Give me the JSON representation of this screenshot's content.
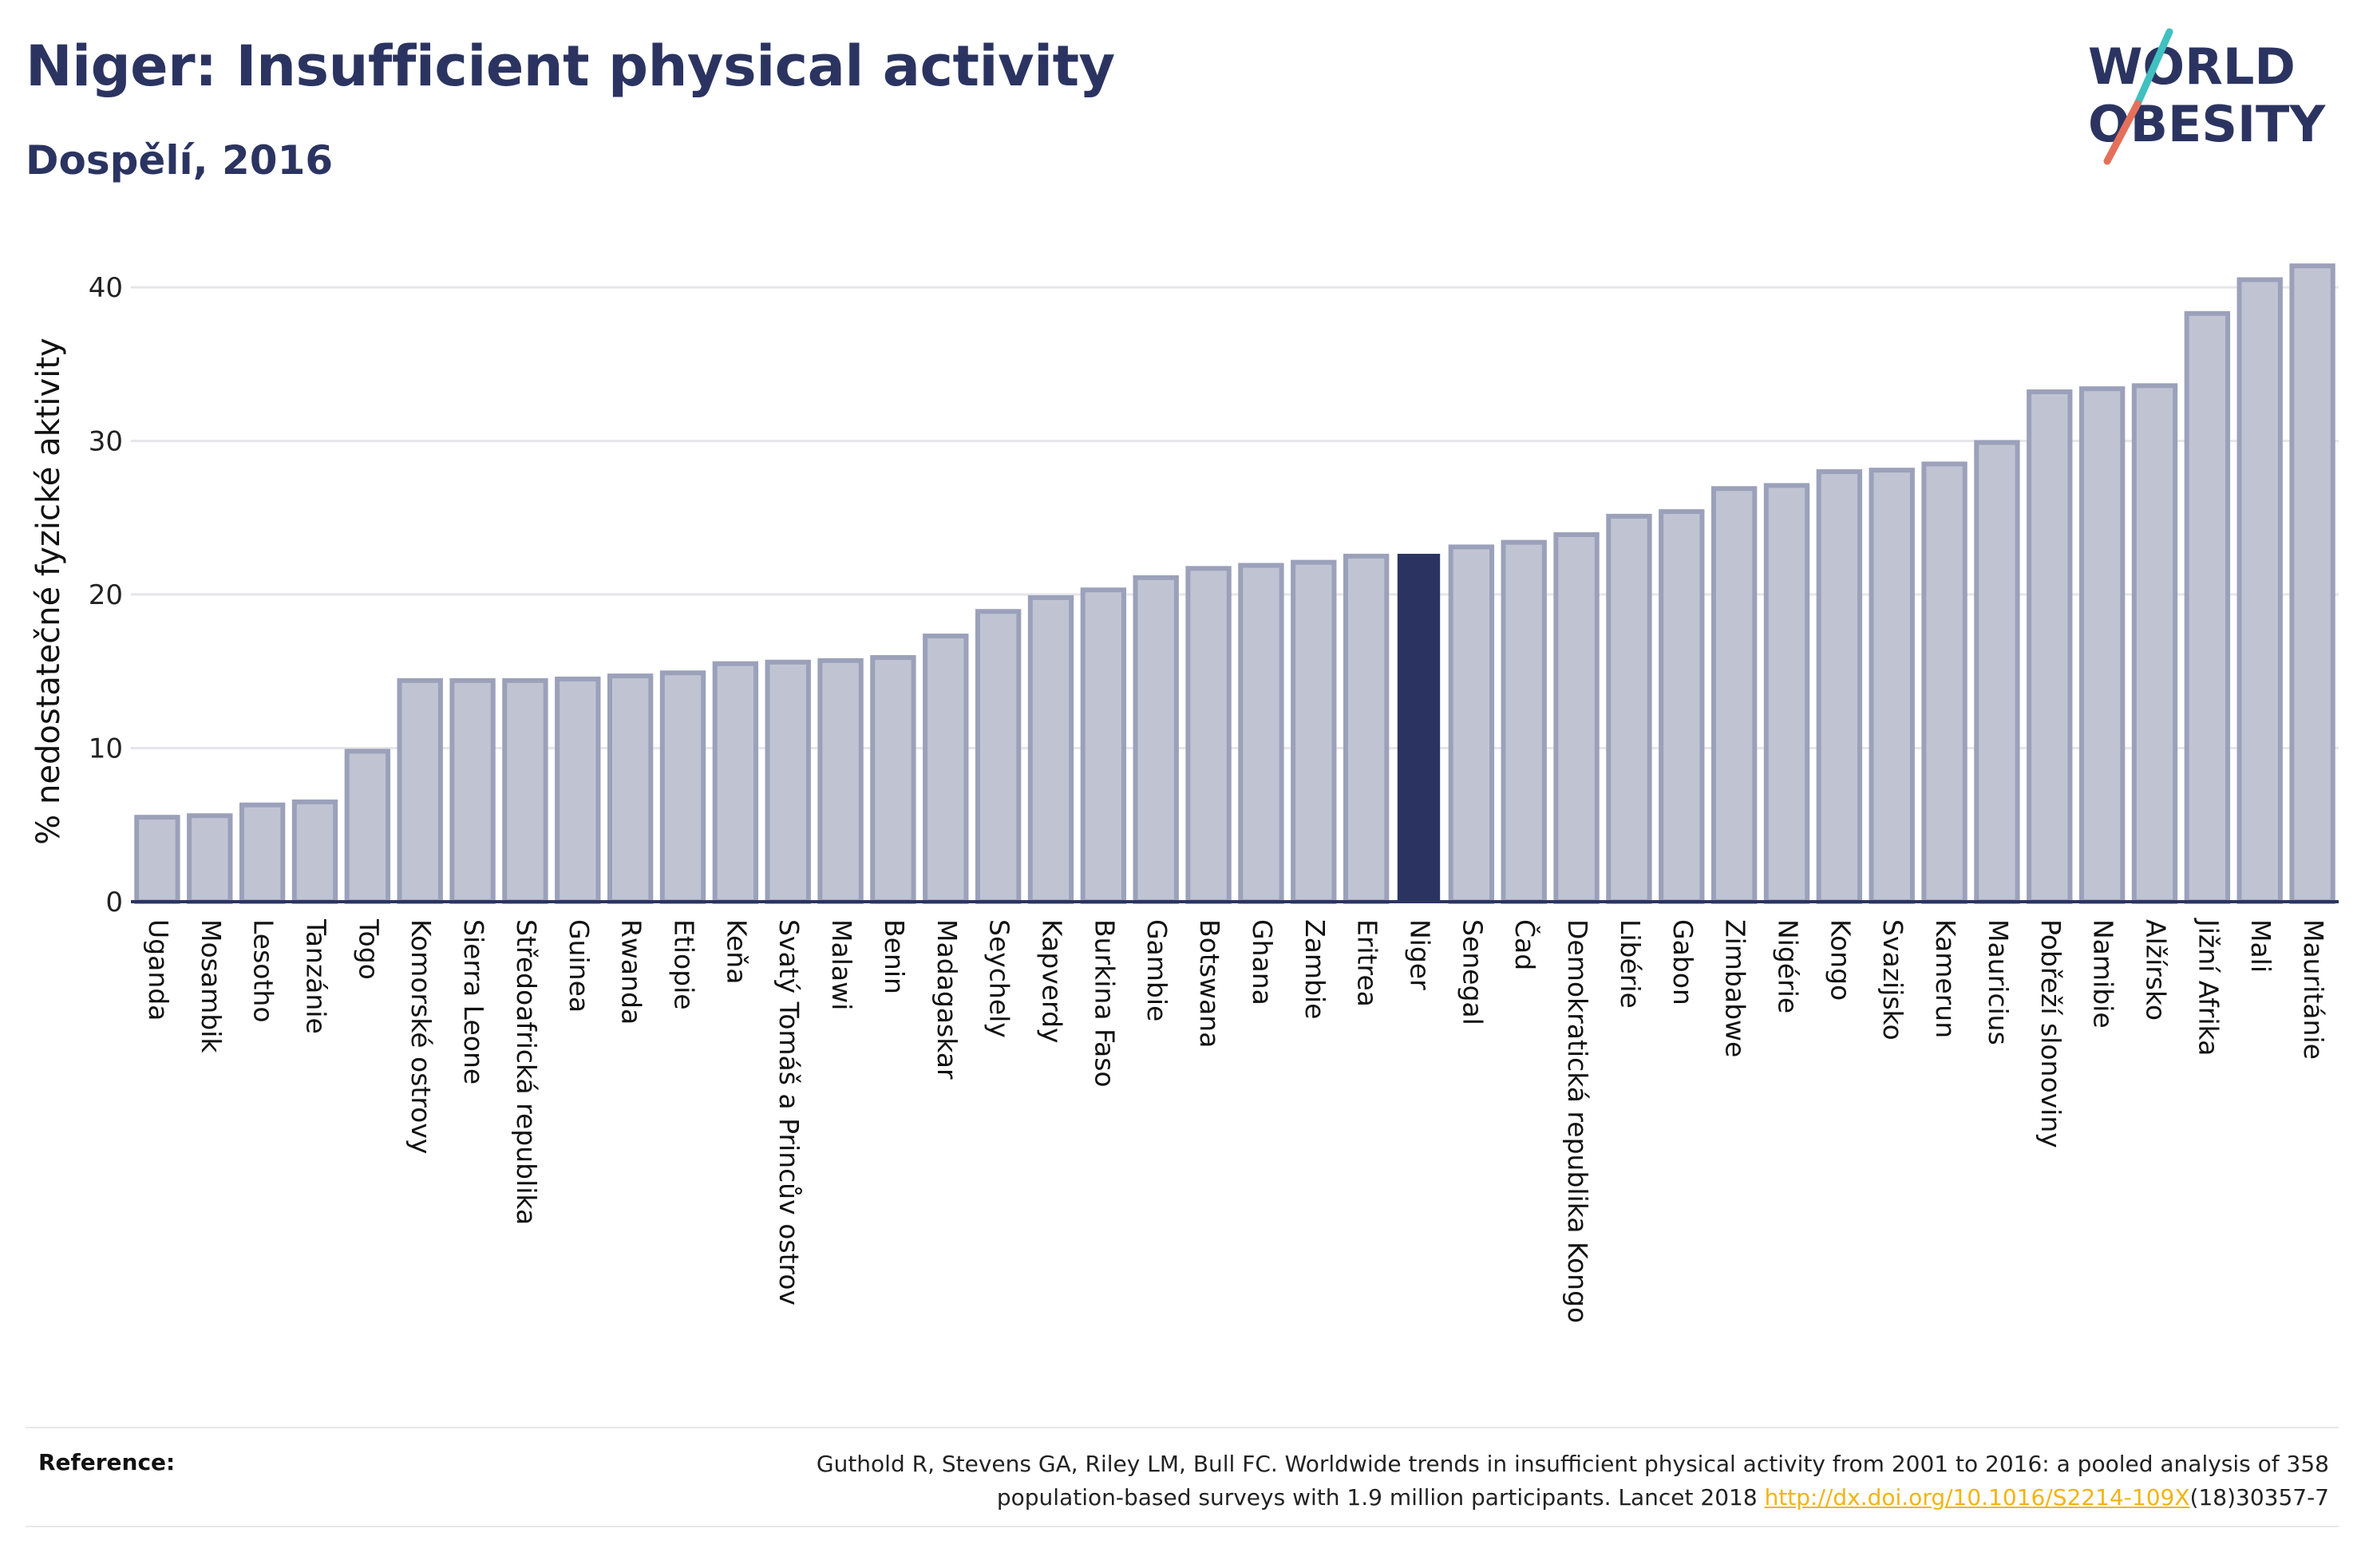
{
  "header": {
    "title": "Niger: Insufficient physical activity",
    "subtitle": "Dospělí, 2016"
  },
  "logo": {
    "line1": "WORLD",
    "line2": "OBESITY",
    "slash_colors": [
      "#40c0c0",
      "#e5705a"
    ],
    "text_color": "#2b3461"
  },
  "colors": {
    "highlight": "#2b3461",
    "bar_fill": "#c0c4d2",
    "bar_stroke": "#9ba1ba",
    "link": "#f2b413"
  },
  "chart_data": {
    "type": "bar",
    "ylabel": "% nedostatečné fyzické aktivity",
    "ylim": [
      0,
      42.5
    ],
    "yticks": [
      0,
      10,
      20,
      30,
      40
    ],
    "grid": true,
    "highlight": "Niger",
    "categories": [
      "Uganda",
      "Mosambik",
      "Lesotho",
      "Tanzánie",
      "Togo",
      "Komorské ostrovy",
      "Sierra Leone",
      "Středoafrická republika",
      "Guinea",
      "Rwanda",
      "Etiopie",
      "Keňa",
      "Svatý Tomáš a Princův ostrov",
      "Malawi",
      "Benin",
      "Madagaskar",
      "Seychely",
      "Kapverdy",
      "Burkina Faso",
      "Gambie",
      "Botswana",
      "Ghana",
      "Zambie",
      "Eritrea",
      "Niger",
      "Senegal",
      "Čad",
      "Demokratická republika Kongo",
      "Libérie",
      "Gabon",
      "Zimbabwe",
      "Nigérie",
      "Kongo",
      "Svazijsko",
      "Kamerun",
      "Mauricius",
      "Pobřeží slonoviny",
      "Namibie",
      "Alžírsko",
      "Jižní Afrika",
      "Mali",
      "Mauritánie"
    ],
    "values": [
      5.5,
      5.6,
      6.3,
      6.5,
      9.8,
      14.4,
      14.4,
      14.4,
      14.5,
      14.7,
      14.9,
      15.5,
      15.6,
      15.7,
      15.9,
      17.3,
      18.9,
      19.8,
      20.3,
      21.1,
      21.7,
      21.9,
      22.1,
      22.5,
      22.6,
      23.1,
      23.4,
      23.9,
      25.1,
      25.4,
      26.9,
      27.1,
      28.0,
      28.1,
      28.5,
      29.9,
      33.2,
      33.4,
      33.6,
      38.3,
      40.5,
      41.4
    ]
  },
  "reference": {
    "label": "Reference:",
    "line1": "Guthold R, Stevens GA, Riley LM, Bull FC. Worldwide trends in insufficient physical activity from 2001 to 2016: a pooled analysis of 358",
    "line2_prefix": "population-based surveys with 1.9 million participants. Lancet 2018 ",
    "link": "http://dx.doi.org/10.1016/S2214-109X",
    "line2_suffix": "(18)30357-7"
  }
}
